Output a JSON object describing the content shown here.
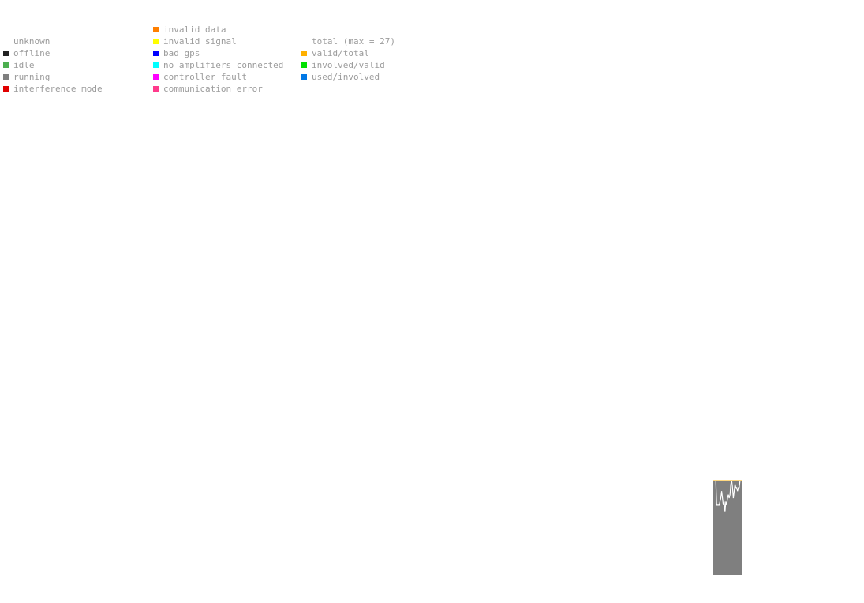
{
  "legend": {
    "status": [
      {
        "label": "unknown",
        "color": ""
      },
      {
        "label": "offline",
        "color": "#222222"
      },
      {
        "label": "idle",
        "color": "#4caf50"
      },
      {
        "label": "running",
        "color": "#7f7f7f"
      },
      {
        "label": "interference mode",
        "color": "#e00000"
      }
    ],
    "errors": [
      {
        "label": "invalid data",
        "color": "#ff7f00"
      },
      {
        "label": "invalid signal",
        "color": "#ffff00"
      },
      {
        "label": "bad gps",
        "color": "#0000ff"
      },
      {
        "label": "no amplifiers connected",
        "color": "#00ffff"
      },
      {
        "label": "controller fault",
        "color": "#ff00ff"
      },
      {
        "label": "communication error",
        "color": "#ff3b8c"
      }
    ],
    "counts": [
      {
        "label": "total (max = 27)",
        "color": ""
      },
      {
        "label": "valid/total",
        "color": "#ffb000"
      },
      {
        "label": "involved/valid",
        "color": "#00e000"
      },
      {
        "label": "used/involved",
        "color": "#0078e6"
      }
    ]
  },
  "chart_data": {
    "type": "area",
    "y_max": 27,
    "fill_status": "running",
    "colors": {
      "fill": "#7f7f7f",
      "line": "#ffffff",
      "frame_top": "#ffb000",
      "frame_left": "#ffb000",
      "baseline": "#0078e6"
    },
    "series": [
      {
        "values": [
          27,
          27,
          27,
          27,
          20,
          20,
          20,
          20,
          21,
          22,
          24,
          22,
          20,
          21,
          18,
          21,
          20,
          22,
          23,
          22,
          23,
          26,
          27,
          25,
          22,
          24,
          26,
          25,
          25,
          24,
          25,
          25,
          27,
          27,
          27
        ]
      }
    ]
  }
}
